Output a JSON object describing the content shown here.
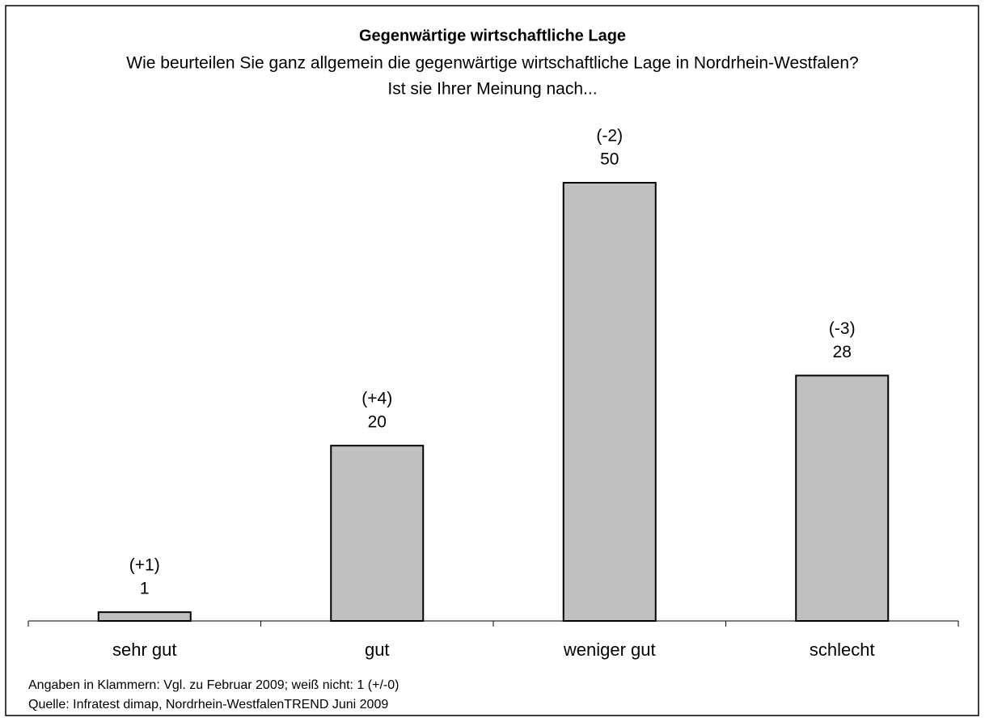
{
  "chart_data": {
    "type": "bar",
    "title": "Gegenwärtige wirtschaftliche Lage",
    "subtitle": [
      "Wie beurteilen Sie ganz allgemein die gegenwärtige wirtschaftliche Lage in Nordrhein-Westfalen?",
      "Ist sie Ihrer Meinung nach..."
    ],
    "categories": [
      "sehr gut",
      "gut",
      "weniger gut",
      "schlecht"
    ],
    "values": [
      1,
      20,
      50,
      28
    ],
    "changes": [
      "(+1)",
      "(+4)",
      "(-2)",
      "(-3)"
    ],
    "color": "#c0c0c0",
    "ylim": [
      0,
      50
    ],
    "notes": [
      "Angaben in Klammern: Vgl. zu Februar 2009; weiß nicht: 1 (+/-0)",
      "Quelle: Infratest dimap, Nordrhein-WestfalenTREND Juni 2009"
    ]
  }
}
